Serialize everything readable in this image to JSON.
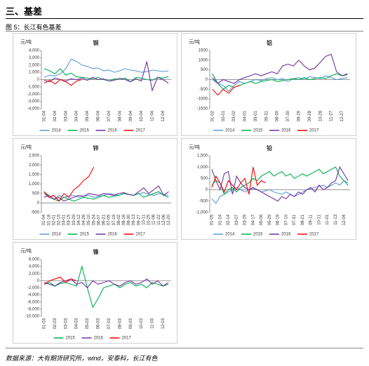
{
  "header": {
    "section": "三、基差",
    "figure": "图 5：长江有色基差",
    "source": "数据来源：大有期货研究所，wind，安泰科，长江有色"
  },
  "chart_data": [
    {
      "type": "line",
      "title": "铜",
      "ylabel": "元/吨",
      "categories": [
        "01-04",
        null,
        "02-04",
        null,
        "03-04",
        null,
        "04-04",
        null,
        "05-04",
        null,
        "06-04",
        null,
        "07-04",
        null,
        "08-04",
        null,
        "09-04",
        null,
        "10-04",
        null,
        "11-04",
        null,
        "12-04",
        null
      ],
      "ylim": [
        -4000,
        4000
      ],
      "yticks": [
        {
          "value": -4000,
          "label": "-4,000"
        },
        {
          "value": -3000,
          "label": "-3,000"
        },
        {
          "value": -2000,
          "label": "-2,000"
        },
        {
          "value": -1000,
          "label": "-1,000"
        },
        0,
        {
          "value": 1000,
          "label": "1,000"
        },
        {
          "value": 2000,
          "label": "2,000"
        },
        {
          "value": 3000,
          "label": "3,000"
        },
        {
          "value": 4000,
          "label": "4,000"
        }
      ],
      "series": [
        {
          "name": "2014",
          "color": "#5b9bd5",
          "values": [
            300,
            600,
            500,
            800,
            1500,
            2800,
            2500,
            2000,
            1800,
            1500,
            1600,
            1200,
            1300,
            1000,
            1200,
            1500,
            1300,
            1200,
            1000,
            1100,
            1300,
            1200,
            1100,
            1200
          ]
        },
        {
          "name": "2015",
          "color": "#00b050",
          "values": [
            1500,
            1200,
            800,
            1500,
            600,
            900,
            400,
            300,
            200,
            100,
            300,
            0,
            -200,
            100,
            0,
            200,
            -300,
            300,
            200,
            0,
            -100,
            300,
            200,
            400
          ]
        },
        {
          "name": "2016",
          "color": "#7030a0",
          "values": [
            -100,
            -300,
            200,
            0,
            -200,
            100,
            0,
            200,
            -100,
            300,
            0,
            100,
            -200,
            -100,
            200,
            0,
            -300,
            100,
            -200,
            2500,
            -1500,
            300,
            0,
            -500
          ]
        },
        {
          "name": "2017",
          "color": "#ff0000",
          "values": [
            -500,
            -100,
            -600,
            0,
            -300,
            -800,
            -200,
            0,
            null,
            null,
            null,
            null,
            null,
            null,
            null,
            null,
            null,
            null,
            null,
            null,
            null,
            null,
            null,
            null
          ]
        }
      ]
    },
    {
      "type": "line",
      "title": "铝",
      "ylabel": "元/吨",
      "categories": [
        "01-02",
        null,
        "02-01",
        null,
        "03-02",
        null,
        "04-01",
        null,
        "05-01",
        null,
        "05-31",
        null,
        "06-30",
        null,
        "07-30",
        null,
        "08-29",
        null,
        "09-28",
        null,
        "10-28",
        null,
        "11-27",
        null,
        "12-27",
        null
      ],
      "ylim": [
        -1500,
        1500
      ],
      "yticks": [
        -1500,
        -1000,
        -500,
        0,
        500,
        1000,
        1500
      ],
      "series": [
        {
          "name": "2014",
          "color": "#5b9bd5",
          "values": [
            0,
            -200,
            -300,
            -600,
            -300,
            -100,
            -200,
            -100,
            0,
            -50,
            50,
            100,
            0,
            50,
            -100,
            50,
            100,
            0,
            150,
            100,
            50,
            200,
            100,
            0,
            50,
            100
          ]
        },
        {
          "name": "2015",
          "color": "#00b050",
          "values": [
            300,
            -200,
            -500,
            -300,
            -400,
            -300,
            -200,
            -100,
            -200,
            -100,
            -50,
            0,
            -100,
            -50,
            0,
            50,
            0,
            100,
            0,
            50,
            100,
            50,
            200,
            300,
            200,
            250
          ]
        },
        {
          "name": "2016",
          "color": "#7030a0",
          "values": [
            100,
            -200,
            0,
            -100,
            -200,
            0,
            100,
            200,
            300,
            200,
            300,
            400,
            300,
            700,
            800,
            700,
            1000,
            700,
            500,
            600,
            900,
            1200,
            1300,
            400,
            200,
            300
          ]
        },
        {
          "name": "2017",
          "color": "#ff0000",
          "values": [
            -500,
            -800,
            -500,
            -700,
            -400,
            -300,
            null,
            null,
            null,
            null,
            null,
            null,
            null,
            null,
            null,
            null,
            null,
            null,
            null,
            null,
            null,
            null,
            null,
            null,
            null,
            null
          ]
        }
      ]
    },
    {
      "type": "line",
      "title": "锌",
      "ylabel": "元/吨",
      "categories": [
        "01-04",
        "01-18",
        "02-01",
        "02-15",
        "03-01",
        "03-15",
        "03-29",
        "04-12",
        "04-26",
        "05-10",
        "05-24",
        "06-07",
        "06-21",
        "07-05",
        "07-19",
        "08-02",
        "08-16",
        "08-30",
        "09-13",
        "09-27",
        "10-11",
        "10-25",
        "11-08",
        "11-22",
        "12-06",
        "12-20"
      ],
      "ylim": [
        -500,
        2500
      ],
      "yticks": [
        -500,
        0,
        500,
        {
          "value": 1000,
          "label": "1,000"
        },
        {
          "value": 1500,
          "label": "1,500"
        },
        {
          "value": 2000,
          "label": "2,000"
        },
        {
          "value": 2500,
          "label": "2,500"
        }
      ],
      "series": [
        {
          "name": "2014",
          "color": "#5b9bd5",
          "values": [
            500,
            300,
            200,
            400,
            300,
            350,
            400,
            300,
            350,
            400,
            300,
            350,
            400,
            500,
            450,
            400,
            500,
            450,
            400,
            500,
            550,
            450,
            400,
            500,
            450,
            400
          ]
        },
        {
          "name": "2015",
          "color": "#00b050",
          "values": [
            600,
            400,
            200,
            100,
            300,
            200,
            100,
            200,
            300,
            250,
            200,
            300,
            400,
            300,
            350,
            400,
            500,
            450,
            400,
            500,
            300,
            400,
            500,
            600,
            400,
            300
          ]
        },
        {
          "name": "2016",
          "color": "#7030a0",
          "values": [
            300,
            400,
            200,
            300,
            100,
            200,
            300,
            400,
            350,
            500,
            450,
            400,
            500,
            450,
            400,
            500,
            550,
            450,
            400,
            600,
            800,
            500,
            700,
            900,
            400,
            600
          ]
        },
        {
          "name": "2017",
          "color": "#ff0000",
          "values": [
            600,
            300,
            400,
            100,
            500,
            300,
            700,
            900,
            1200,
            1400,
            1900,
            null,
            null,
            null,
            null,
            null,
            null,
            null,
            null,
            null,
            null,
            null,
            null,
            null,
            null,
            null
          ]
        }
      ]
    },
    {
      "type": "line",
      "title": "铅",
      "ylabel": "元/吨",
      "categories": [
        "01-05",
        null,
        "01-24",
        null,
        "02-14",
        null,
        "03-07",
        null,
        "03-29",
        null,
        "04-17",
        null,
        "05-08",
        null,
        "05-29",
        null,
        "06-19",
        null,
        "07-10",
        null,
        "07-31",
        null,
        "08-21",
        null,
        "09-11",
        null,
        "10-11",
        null,
        "11-01",
        null,
        "11-13",
        null,
        "12-04",
        null
      ],
      "ylim": [
        -1000,
        1500
      ],
      "yticks": [
        {
          "value": -1000,
          "label": "-1,000"
        },
        -500,
        0,
        500,
        {
          "value": 1000,
          "label": "1,000"
        },
        {
          "value": 1500,
          "label": "1,500"
        }
      ],
      "series": [
        {
          "name": "2014",
          "color": "#5b9bd5",
          "values": [
            -400,
            -600,
            -300,
            -200,
            -100,
            0,
            100,
            0,
            -100,
            0,
            50,
            0,
            -100,
            -50,
            0,
            -100,
            -150,
            -200,
            -100,
            -200,
            -300,
            -200,
            -100,
            0,
            50,
            100,
            150,
            200,
            100,
            200,
            300,
            200,
            400,
            300
          ]
        },
        {
          "name": "2015",
          "color": "#00b050",
          "values": [
            200,
            400,
            300,
            -200,
            0,
            100,
            -100,
            100,
            200,
            300,
            500,
            400,
            600,
            700,
            800,
            600,
            700,
            800,
            600,
            700,
            500,
            600,
            700,
            600,
            700,
            800,
            900,
            700,
            800,
            900,
            1000,
            600,
            400,
            200
          ]
        },
        {
          "name": "2016",
          "color": "#7030a0",
          "values": [
            900,
            400,
            0,
            700,
            800,
            -200,
            600,
            300,
            100,
            0,
            100,
            0,
            -100,
            -200,
            -300,
            -400,
            -500,
            -300,
            -400,
            -200,
            -300,
            -100,
            -200,
            0,
            100,
            -100,
            200,
            0,
            100,
            300,
            400,
            1000,
            700,
            400
          ]
        },
        {
          "name": "2017",
          "color": "#ff0000",
          "values": [
            100,
            600,
            300,
            -100,
            400,
            200,
            0,
            300,
            500,
            -200,
            1000,
            200,
            400,
            300,
            null,
            null,
            null,
            null,
            null,
            null,
            null,
            null,
            null,
            null,
            null,
            null,
            null,
            null,
            null,
            null,
            null,
            null,
            null,
            null
          ]
        }
      ]
    },
    {
      "type": "line",
      "title": "镍",
      "ylabel": "元/吨",
      "categories": [
        "01-03",
        null,
        "02-03",
        null,
        "03-03",
        null,
        "04-03",
        null,
        "05-03",
        null,
        "06-03",
        null,
        "07-03",
        null,
        "08-03",
        null,
        "09-03",
        null,
        "10-03",
        null,
        "11-03",
        null,
        "12-03",
        null
      ],
      "ylim": [
        -10000,
        6000
      ],
      "yticks": [
        {
          "value": -10000,
          "label": "-10,000"
        },
        {
          "value": -8000,
          "label": "-8,000"
        },
        {
          "value": -6000,
          "label": "-6,000"
        },
        {
          "value": -4000,
          "label": "-4,000"
        },
        {
          "value": -2000,
          "label": "-2,000"
        },
        0,
        {
          "value": 2000,
          "label": "2,000"
        },
        {
          "value": 4000,
          "label": "4,000"
        },
        {
          "value": 6000,
          "label": "6,000"
        }
      ],
      "series": [
        {
          "name": "2015",
          "color": "#00b050",
          "values": [
            -1000,
            -500,
            -1500,
            -800,
            -500,
            -1000,
            -1500,
            4000,
            -2000,
            -7500,
            -5000,
            -2000,
            -1500,
            -1000,
            -2000,
            -1000,
            -500,
            -1500,
            -1000,
            -2000,
            -500,
            -1000,
            -1500,
            -1000
          ]
        },
        {
          "name": "2016",
          "color": "#7030a0",
          "values": [
            -500,
            -1000,
            -1500,
            -500,
            0,
            500,
            -1000,
            -500,
            -2000,
            0,
            -1000,
            -500,
            0,
            -1000,
            -1500,
            -500,
            0,
            -1000,
            -500,
            500,
            -1000,
            0,
            -1500,
            -500
          ]
        },
        {
          "name": "2017",
          "color": "#ff0000",
          "values": [
            -1000,
            0,
            500,
            1000,
            -500,
            500,
            0,
            null,
            null,
            null,
            null,
            null,
            null,
            null,
            null,
            null,
            null,
            null,
            null,
            null,
            null,
            null,
            null,
            null
          ]
        }
      ]
    }
  ]
}
